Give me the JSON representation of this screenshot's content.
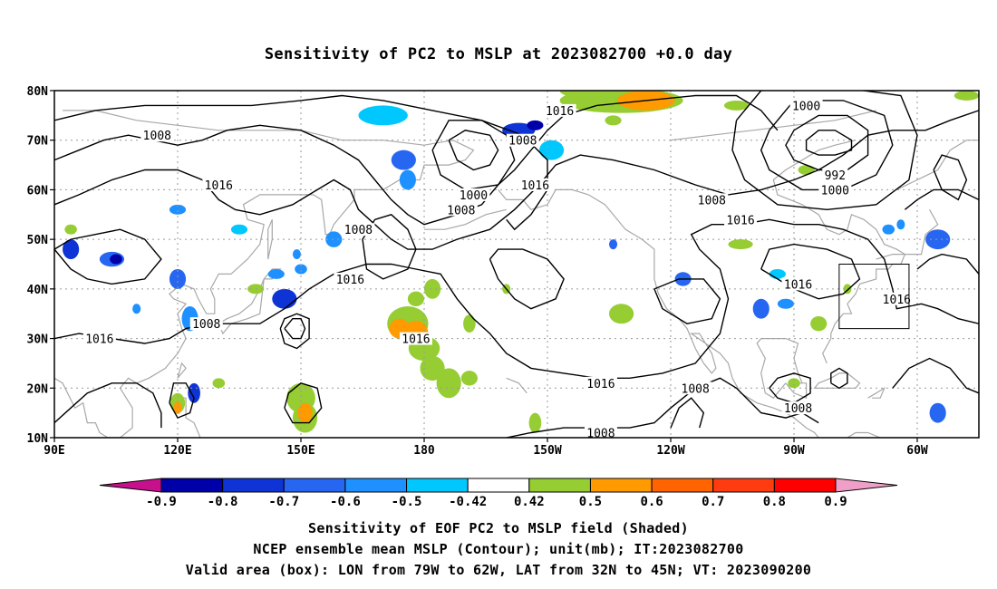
{
  "title": "Sensitivity of PC2 to MSLP at 2023082700 +0.0 day",
  "lat_labels": [
    "80N",
    "70N",
    "60N",
    "50N",
    "40N",
    "30N",
    "20N",
    "10N"
  ],
  "lon_labels": [
    "90E",
    "120E",
    "150E",
    "180",
    "150W",
    "120W",
    "90W",
    "60W"
  ],
  "contour_labels": [
    {
      "text": "1016",
      "lon": 130,
      "lat": 61
    },
    {
      "text": "1008",
      "lon": 115,
      "lat": 71
    },
    {
      "text": "1008",
      "lon": 127,
      "lat": 33
    },
    {
      "text": "1016",
      "lon": 101,
      "lat": 30
    },
    {
      "text": "1008",
      "lon": 164,
      "lat": 52
    },
    {
      "text": "1016",
      "lon": 162,
      "lat": 42
    },
    {
      "text": "1008",
      "lon": 189,
      "lat": 56
    },
    {
      "text": "1000",
      "lon": 192,
      "lat": 59
    },
    {
      "text": "1016",
      "lon": 207,
      "lat": 61
    },
    {
      "text": "1016",
      "lon": 213,
      "lat": 76
    },
    {
      "text": "1008",
      "lon": 204,
      "lat": 70
    },
    {
      "text": "1016",
      "lon": 178,
      "lat": 30
    },
    {
      "text": "1016",
      "lon": 223,
      "lat": 21
    },
    {
      "text": "1008",
      "lon": 223,
      "lat": 11
    },
    {
      "text": "1008",
      "lon": 246,
      "lat": 20
    },
    {
      "text": "1008",
      "lon": 250,
      "lat": 58
    },
    {
      "text": "1016",
      "lon": 257,
      "lat": 54
    },
    {
      "text": "1016",
      "lon": 271,
      "lat": 41
    },
    {
      "text": "1008",
      "lon": 271,
      "lat": 16
    },
    {
      "text": "1000",
      "lon": 273,
      "lat": 77
    },
    {
      "text": "992",
      "lon": 280,
      "lat": 63
    },
    {
      "text": "1000",
      "lon": 280,
      "lat": 60
    },
    {
      "text": "1016",
      "lon": 295,
      "lat": 38
    }
  ],
  "colorbar": {
    "labels": [
      "-0.9",
      "-0.8",
      "-0.7",
      "-0.6",
      "-0.5",
      "-0.42",
      "0.42",
      "0.5",
      "0.6",
      "0.7",
      "0.8",
      "0.9"
    ],
    "colors": [
      "#0000a8",
      "#0e34d6",
      "#2666f0",
      "#1e90ff",
      "#00c8ff",
      "#ffffff",
      "#96cd32",
      "#ff9a00",
      "#ff6400",
      "#ff3c10",
      "#ff0000"
    ],
    "under_color": "#c8108c",
    "over_color": "#f0a0c8"
  },
  "valid_box": {
    "lon_min": 281,
    "lon_max": 298,
    "lat_min": 32,
    "lat_max": 45
  },
  "captions": [
    "Sensitivity of EOF PC2 to MSLP field (Shaded)",
    "NCEP ensemble mean MSLP (Contour); unit(mb); IT:2023082700",
    "Valid area (box): LON from 79W to 62W, LAT from 32N to 45N; VT: 2023090200"
  ]
}
